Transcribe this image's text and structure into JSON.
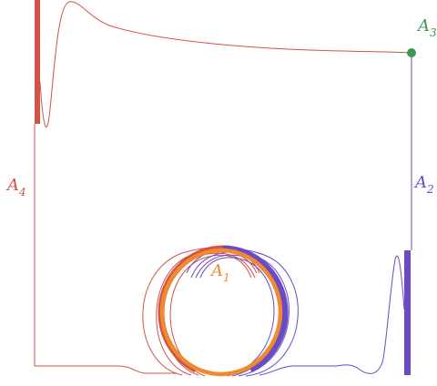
{
  "labels": {
    "a1": {
      "base": "A",
      "sub": "1"
    },
    "a2": {
      "base": "A",
      "sub": "2"
    },
    "a3": {
      "base": "A",
      "sub": "3"
    },
    "a4": {
      "base": "A",
      "sub": "4"
    }
  },
  "colors": {
    "red": "#d0534a",
    "orange": "#f08a2c",
    "purple": "#6a4bc4",
    "green": "#3a9a52"
  }
}
